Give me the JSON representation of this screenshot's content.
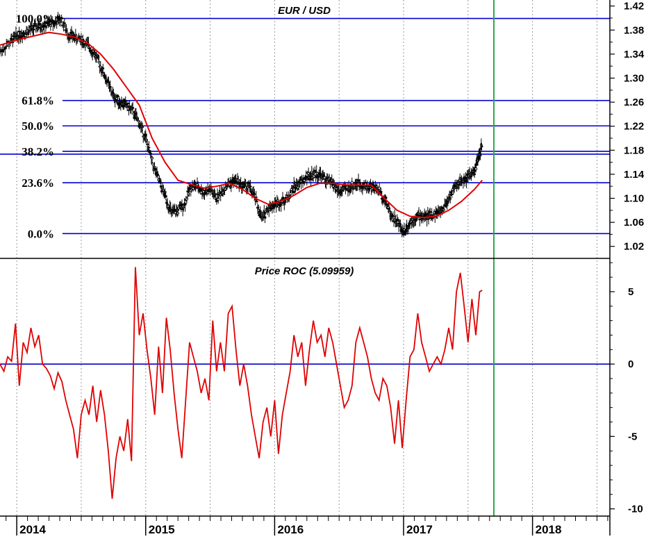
{
  "chart_data": [
    {
      "type": "candlestick",
      "title": "EUR / USD",
      "y_axis_side": "right",
      "ylim": [
        1.0,
        1.43
      ],
      "y_ticks": [
        "1.42",
        "1.38",
        "1.34",
        "1.30",
        "1.26",
        "1.22",
        "1.18",
        "1.14",
        "1.10",
        "1.06",
        "1.02"
      ],
      "grid": "vertical dotted",
      "fib_levels": [
        {
          "label": "100.0%",
          "value": 1.3993
        },
        {
          "label": "61.8%",
          "value": 1.2627
        },
        {
          "label": "50.0%",
          "value": 1.2205
        },
        {
          "label": "38.2%",
          "value": 1.1782
        },
        {
          "label": "23.6%",
          "value": 1.1259
        },
        {
          "label": "0.0%",
          "value": 1.0413
        }
      ],
      "extra_hline": 1.1735,
      "moving_average_color": "#e00000",
      "price_color": "#000000",
      "price_path": [
        [
          2013.87,
          1.345
        ],
        [
          2013.95,
          1.36
        ],
        [
          2014.0,
          1.37
        ],
        [
          2014.05,
          1.375
        ],
        [
          2014.1,
          1.38
        ],
        [
          2014.15,
          1.385
        ],
        [
          2014.2,
          1.388
        ],
        [
          2014.25,
          1.39
        ],
        [
          2014.3,
          1.393
        ],
        [
          2014.34,
          1.399
        ],
        [
          2014.4,
          1.373
        ],
        [
          2014.45,
          1.368
        ],
        [
          2014.5,
          1.363
        ],
        [
          2014.55,
          1.355
        ],
        [
          2014.6,
          1.342
        ],
        [
          2014.65,
          1.32
        ],
        [
          2014.7,
          1.295
        ],
        [
          2014.75,
          1.27
        ],
        [
          2014.8,
          1.26
        ],
        [
          2014.85,
          1.255
        ],
        [
          2014.9,
          1.245
        ],
        [
          2014.95,
          1.225
        ],
        [
          2015.0,
          1.2
        ],
        [
          2015.05,
          1.16
        ],
        [
          2015.1,
          1.13
        ],
        [
          2015.15,
          1.105
        ],
        [
          2015.2,
          1.075
        ],
        [
          2015.25,
          1.08
        ],
        [
          2015.3,
          1.09
        ],
        [
          2015.35,
          1.12
        ],
        [
          2015.4,
          1.12
        ],
        [
          2015.45,
          1.11
        ],
        [
          2015.5,
          1.115
        ],
        [
          2015.55,
          1.1
        ],
        [
          2015.6,
          1.115
        ],
        [
          2015.65,
          1.125
        ],
        [
          2015.7,
          1.13
        ],
        [
          2015.75,
          1.12
        ],
        [
          2015.8,
          1.12
        ],
        [
          2015.85,
          1.1
        ],
        [
          2015.9,
          1.065
        ],
        [
          2015.95,
          1.085
        ],
        [
          2016.0,
          1.09
        ],
        [
          2016.05,
          1.095
        ],
        [
          2016.1,
          1.1
        ],
        [
          2016.15,
          1.12
        ],
        [
          2016.2,
          1.125
        ],
        [
          2016.25,
          1.135
        ],
        [
          2016.3,
          1.14
        ],
        [
          2016.35,
          1.14
        ],
        [
          2016.4,
          1.13
        ],
        [
          2016.45,
          1.125
        ],
        [
          2016.5,
          1.11
        ],
        [
          2016.55,
          1.115
        ],
        [
          2016.6,
          1.12
        ],
        [
          2016.65,
          1.125
        ],
        [
          2016.7,
          1.12
        ],
        [
          2016.75,
          1.12
        ],
        [
          2016.8,
          1.115
        ],
        [
          2016.85,
          1.1
        ],
        [
          2016.9,
          1.075
        ],
        [
          2016.95,
          1.06
        ],
        [
          2017.0,
          1.045
        ],
        [
          2017.05,
          1.06
        ],
        [
          2017.1,
          1.07
        ],
        [
          2017.15,
          1.07
        ],
        [
          2017.2,
          1.07
        ],
        [
          2017.25,
          1.075
        ],
        [
          2017.3,
          1.08
        ],
        [
          2017.35,
          1.1
        ],
        [
          2017.4,
          1.12
        ],
        [
          2017.45,
          1.13
        ],
        [
          2017.5,
          1.135
        ],
        [
          2017.55,
          1.145
        ],
        [
          2017.58,
          1.165
        ],
        [
          2017.61,
          1.19
        ]
      ],
      "moving_average": [
        [
          2013.87,
          1.355
        ],
        [
          2013.95,
          1.36
        ],
        [
          2014.05,
          1.366
        ],
        [
          2014.15,
          1.371
        ],
        [
          2014.25,
          1.376
        ],
        [
          2014.35,
          1.373
        ],
        [
          2014.45,
          1.368
        ],
        [
          2014.55,
          1.358
        ],
        [
          2014.65,
          1.34
        ],
        [
          2014.75,
          1.315
        ],
        [
          2014.85,
          1.285
        ],
        [
          2014.95,
          1.255
        ],
        [
          2015.05,
          1.2
        ],
        [
          2015.15,
          1.16
        ],
        [
          2015.25,
          1.13
        ],
        [
          2015.35,
          1.123
        ],
        [
          2015.45,
          1.117
        ],
        [
          2015.55,
          1.12
        ],
        [
          2015.65,
          1.125
        ],
        [
          2015.75,
          1.115
        ],
        [
          2015.85,
          1.1
        ],
        [
          2015.95,
          1.09
        ],
        [
          2016.05,
          1.095
        ],
        [
          2016.15,
          1.105
        ],
        [
          2016.25,
          1.118
        ],
        [
          2016.35,
          1.125
        ],
        [
          2016.45,
          1.125
        ],
        [
          2016.55,
          1.122
        ],
        [
          2016.65,
          1.122
        ],
        [
          2016.75,
          1.122
        ],
        [
          2016.85,
          1.1
        ],
        [
          2016.95,
          1.08
        ],
        [
          2017.05,
          1.07
        ],
        [
          2017.15,
          1.068
        ],
        [
          2017.25,
          1.07
        ],
        [
          2017.35,
          1.08
        ],
        [
          2017.45,
          1.095
        ],
        [
          2017.55,
          1.115
        ],
        [
          2017.61,
          1.13
        ]
      ]
    },
    {
      "type": "line",
      "title": "Price ROC (5.09959)",
      "y_axis_side": "right",
      "ylim": [
        -10.5,
        7.3
      ],
      "y_ticks": [
        "5",
        "0",
        "-5",
        "-10"
      ],
      "zero_line": 0,
      "line_color": "#e00000",
      "series": [
        {
          "points": [
            [
              2013.87,
              0.0
            ],
            [
              2013.9,
              -0.5
            ],
            [
              2013.93,
              0.5
            ],
            [
              2013.96,
              0.2
            ],
            [
              2013.99,
              2.8
            ],
            [
              2014.02,
              -1.5
            ],
            [
              2014.05,
              1.5
            ],
            [
              2014.08,
              0.8
            ],
            [
              2014.11,
              2.5
            ],
            [
              2014.14,
              1.2
            ],
            [
              2014.17,
              2.0
            ],
            [
              2014.2,
              0.0
            ],
            [
              2014.23,
              -0.3
            ],
            [
              2014.26,
              -0.8
            ],
            [
              2014.29,
              -1.7
            ],
            [
              2014.32,
              -0.6
            ],
            [
              2014.35,
              -1.2
            ],
            [
              2014.38,
              -2.5
            ],
            [
              2014.41,
              -3.5
            ],
            [
              2014.44,
              -4.5
            ],
            [
              2014.47,
              -6.5
            ],
            [
              2014.5,
              -3.5
            ],
            [
              2014.53,
              -2.5
            ],
            [
              2014.56,
              -3.5
            ],
            [
              2014.59,
              -1.5
            ],
            [
              2014.62,
              -4.0
            ],
            [
              2014.65,
              -1.8
            ],
            [
              2014.68,
              -3.5
            ],
            [
              2014.71,
              -6.0
            ],
            [
              2014.74,
              -9.3
            ],
            [
              2014.77,
              -6.5
            ],
            [
              2014.8,
              -5.0
            ],
            [
              2014.83,
              -6.0
            ],
            [
              2014.86,
              -3.8
            ],
            [
              2014.89,
              -6.7
            ],
            [
              2014.92,
              6.7
            ],
            [
              2014.95,
              2.0
            ],
            [
              2014.98,
              3.5
            ],
            [
              2015.01,
              1.0
            ],
            [
              2015.04,
              -1.0
            ],
            [
              2015.07,
              -3.5
            ],
            [
              2015.1,
              1.2
            ],
            [
              2015.13,
              -2.0
            ],
            [
              2015.16,
              3.2
            ],
            [
              2015.19,
              1.0
            ],
            [
              2015.22,
              -2.0
            ],
            [
              2015.25,
              -4.5
            ],
            [
              2015.28,
              -6.5
            ],
            [
              2015.31,
              -2.5
            ],
            [
              2015.34,
              1.5
            ],
            [
              2015.37,
              0.5
            ],
            [
              2015.4,
              -0.5
            ],
            [
              2015.43,
              -2.0
            ],
            [
              2015.46,
              -1.0
            ],
            [
              2015.49,
              -2.5
            ],
            [
              2015.52,
              3.0
            ],
            [
              2015.55,
              -0.5
            ],
            [
              2015.58,
              1.5
            ],
            [
              2015.61,
              -0.5
            ],
            [
              2015.64,
              3.5
            ],
            [
              2015.67,
              4.0
            ],
            [
              2015.7,
              1.0
            ],
            [
              2015.73,
              -1.5
            ],
            [
              2015.76,
              0.0
            ],
            [
              2015.79,
              -1.5
            ],
            [
              2015.82,
              -3.5
            ],
            [
              2015.85,
              -5.0
            ],
            [
              2015.88,
              -6.5
            ],
            [
              2015.91,
              -4.0
            ],
            [
              2015.94,
              -3.0
            ],
            [
              2015.97,
              -5.0
            ],
            [
              2016.0,
              -2.5
            ],
            [
              2016.03,
              -6.2
            ],
            [
              2016.06,
              -3.5
            ],
            [
              2016.09,
              -2.0
            ],
            [
              2016.12,
              -0.5
            ],
            [
              2016.15,
              2.0
            ],
            [
              2016.18,
              0.5
            ],
            [
              2016.21,
              1.5
            ],
            [
              2016.24,
              -1.5
            ],
            [
              2016.27,
              1.0
            ],
            [
              2016.3,
              3.0
            ],
            [
              2016.33,
              1.5
            ],
            [
              2016.36,
              2.0
            ],
            [
              2016.39,
              0.5
            ],
            [
              2016.42,
              2.5
            ],
            [
              2016.45,
              1.5
            ],
            [
              2016.48,
              0.0
            ],
            [
              2016.51,
              -1.5
            ],
            [
              2016.54,
              -3.0
            ],
            [
              2016.57,
              -2.5
            ],
            [
              2016.6,
              -1.5
            ],
            [
              2016.63,
              1.5
            ],
            [
              2016.66,
              2.5
            ],
            [
              2016.69,
              1.5
            ],
            [
              2016.72,
              0.5
            ],
            [
              2016.75,
              -1.0
            ],
            [
              2016.78,
              -2.0
            ],
            [
              2016.81,
              -2.5
            ],
            [
              2016.84,
              -1.0
            ],
            [
              2016.87,
              -1.5
            ],
            [
              2016.9,
              -3.0
            ],
            [
              2016.93,
              -5.5
            ],
            [
              2016.96,
              -2.5
            ],
            [
              2016.99,
              -5.8
            ],
            [
              2017.02,
              -2.5
            ],
            [
              2017.05,
              0.5
            ],
            [
              2017.08,
              1.0
            ],
            [
              2017.11,
              3.5
            ],
            [
              2017.14,
              1.5
            ],
            [
              2017.17,
              0.5
            ],
            [
              2017.2,
              -0.5
            ],
            [
              2017.23,
              0.0
            ],
            [
              2017.26,
              0.5
            ],
            [
              2017.29,
              0.0
            ],
            [
              2017.32,
              1.0
            ],
            [
              2017.35,
              2.5
            ],
            [
              2017.38,
              1.0
            ],
            [
              2017.41,
              5.0
            ],
            [
              2017.44,
              6.3
            ],
            [
              2017.47,
              4.0
            ],
            [
              2017.5,
              1.5
            ],
            [
              2017.53,
              4.5
            ],
            [
              2017.56,
              2.0
            ],
            [
              2017.59,
              5.0
            ],
            [
              2017.61,
              5.1
            ]
          ]
        }
      ]
    }
  ],
  "x_axis": {
    "ticks": [
      {
        "label": "2014",
        "value": 2014.0
      },
      {
        "label": "2015",
        "value": 2015.0
      },
      {
        "label": "2016",
        "value": 2016.0
      },
      {
        "label": "2017",
        "value": 2017.0
      },
      {
        "label": "2018",
        "value": 2018.0
      }
    ],
    "xlim": [
      2013.87,
      2018.6
    ]
  },
  "vertical_marker": {
    "value": 2017.7,
    "color": "#2aa84a"
  },
  "colors": {
    "level_line": "#0000cc",
    "grid": "#999999",
    "frame": "#000000"
  }
}
